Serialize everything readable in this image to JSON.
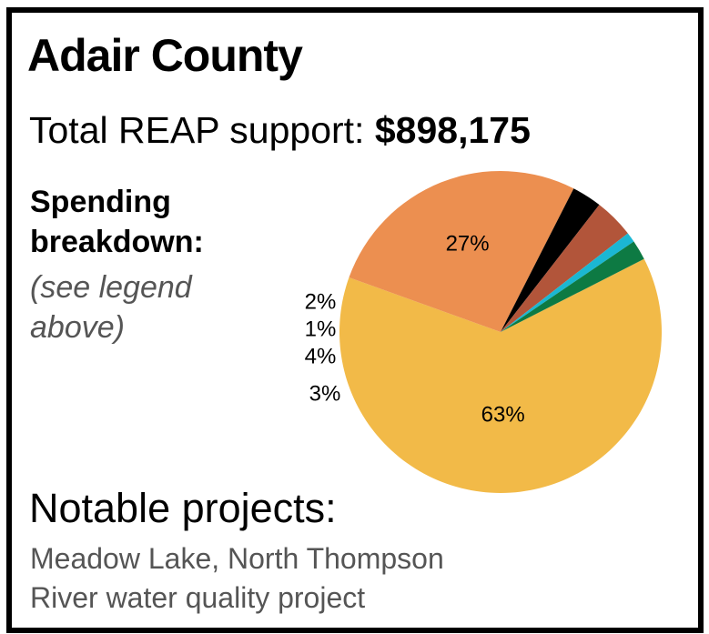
{
  "header": {
    "title": "Adair County",
    "total_label": "Total REAP support:",
    "total_value": "$898,175"
  },
  "breakdown": {
    "heading_line1": "Spending",
    "heading_line2": "breakdown:",
    "note_line1": "(see legend",
    "note_line2": "above)"
  },
  "notable": {
    "title": "Notable projects:",
    "line1": "Meadow Lake, North Thompson",
    "line2": "River water quality project"
  },
  "chart_data": {
    "type": "pie",
    "slices": [
      {
        "label": "63%",
        "value": 63,
        "color": "#F2BA48"
      },
      {
        "label": "27%",
        "value": 27,
        "color": "#EC8F50"
      },
      {
        "label": "3%",
        "value": 3,
        "color": "#000000"
      },
      {
        "label": "4%",
        "value": 4,
        "color": "#B2553A"
      },
      {
        "label": "1%",
        "value": 1,
        "color": "#1BB7D3"
      },
      {
        "label": "2%",
        "value": 2,
        "color": "#0D7A43"
      }
    ]
  }
}
